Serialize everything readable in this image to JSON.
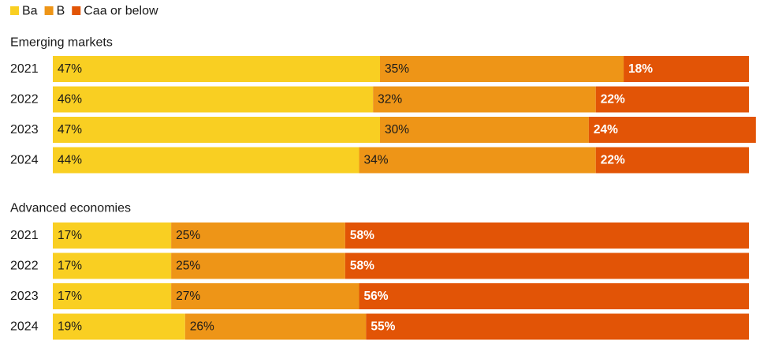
{
  "legend": [
    {
      "label": "Ba",
      "color": "#F9CF22"
    },
    {
      "label": "B",
      "color": "#EE9517"
    },
    {
      "label": "Caa or below",
      "color": "#E25406"
    }
  ],
  "chart_data": {
    "type": "bar",
    "orientation": "horizontal",
    "stacked": true,
    "percent": true,
    "series_names": [
      "Ba",
      "B",
      "Caa or below"
    ],
    "series_colors": [
      "#F9CF22",
      "#EE9517",
      "#E25406"
    ],
    "xlim": [
      0,
      100
    ],
    "legend_position": "top-left",
    "panels": [
      {
        "title": "Emerging markets",
        "categories": [
          "2021",
          "2022",
          "2023",
          "2024"
        ],
        "series": [
          {
            "name": "Ba",
            "values": [
              47,
              46,
              47,
              44
            ]
          },
          {
            "name": "B",
            "values": [
              35,
              32,
              30,
              34
            ]
          },
          {
            "name": "Caa or below",
            "values": [
              18,
              22,
              24,
              22
            ]
          }
        ]
      },
      {
        "title": "Advanced economies",
        "categories": [
          "2021",
          "2022",
          "2023",
          "2024"
        ],
        "series": [
          {
            "name": "Ba",
            "values": [
              17,
              17,
              17,
              19
            ]
          },
          {
            "name": "B",
            "values": [
              25,
              25,
              27,
              26
            ]
          },
          {
            "name": "Caa or below",
            "values": [
              58,
              58,
              56,
              55
            ]
          }
        ]
      }
    ]
  }
}
